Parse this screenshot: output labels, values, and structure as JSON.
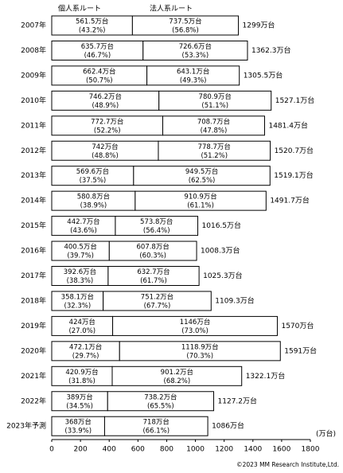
{
  "chart_data": {
    "type": "stacked_bar_h",
    "categories": [
      "2007年",
      "2008年",
      "2009年",
      "2010年",
      "2011年",
      "2012年",
      "2013年",
      "2014年",
      "2015年",
      "2016年",
      "2017年",
      "2018年",
      "2019年",
      "2020年",
      "2021年",
      "2022年",
      "2023年予測"
    ],
    "series": [
      {
        "name": "個人系ルート",
        "color": "#ffffff",
        "values": [
          561.5,
          635.7,
          662.4,
          746.2,
          772.7,
          742,
          569.6,
          580.8,
          442.7,
          400.5,
          392.6,
          358.1,
          424,
          472.1,
          420.9,
          389,
          368
        ],
        "value_labels": [
          "561.5万台",
          "635.7万台",
          "662.4万台",
          "746.2万台",
          "772.7万台",
          "742万台",
          "569.6万台",
          "580.8万台",
          "442.7万台",
          "400.5万台",
          "392.6万台",
          "358.1万台",
          "424万台",
          "472.1万台",
          "420.9万台",
          "389万台",
          "368万台"
        ],
        "shares": [
          43.2,
          46.7,
          50.7,
          48.9,
          52.2,
          48.8,
          37.5,
          38.9,
          43.6,
          39.7,
          38.3,
          32.3,
          27,
          29.7,
          31.8,
          34.5,
          33.9
        ],
        "share_labels": [
          "(43.2%)",
          "(46.7%)",
          "(50.7%)",
          "(48.9%)",
          "(52.2%)",
          "(48.8%)",
          "(37.5%)",
          "(38.9%)",
          "(43.6%)",
          "(39.7%)",
          "(38.3%)",
          "(32.3%)",
          "(27.0%)",
          "(29.7%)",
          "(31.8%)",
          "(34.5%)",
          "(33.9%)"
        ]
      },
      {
        "name": "法人系ルート",
        "color": "#ffffff",
        "values": [
          737.5,
          726.6,
          643.1,
          780.9,
          708.7,
          778.7,
          949.5,
          910.9,
          573.8,
          607.8,
          632.7,
          751.2,
          1146,
          1118.9,
          901.2,
          738.2,
          718
        ],
        "value_labels": [
          "737.5万台",
          "726.6万台",
          "643.1万台",
          "780.9万台",
          "708.7万台",
          "778.7万台",
          "949.5万台",
          "910.9万台",
          "573.8万台",
          "607.8万台",
          "632.7万台",
          "751.2万台",
          "1146万台",
          "1118.9万台",
          "901.2万台",
          "738.2万台",
          "718万台"
        ],
        "shares": [
          56.8,
          53.3,
          49.3,
          51.1,
          47.8,
          51.2,
          62.5,
          61.1,
          56.4,
          60.3,
          61.7,
          67.7,
          73,
          70.3,
          68.2,
          65.5,
          66.1
        ],
        "share_labels": [
          "(56.8%)",
          "(53.3%)",
          "(49.3%)",
          "(51.1%)",
          "(47.8%)",
          "(51.2%)",
          "(62.5%)",
          "(61.1%)",
          "(56.4%)",
          "(60.3%)",
          "(61.7%)",
          "(67.7%)",
          "(73.0%)",
          "(70.3%)",
          "(68.2%)",
          "(65.5%)",
          "(66.1%)"
        ]
      }
    ],
    "totals": [
      1299,
      1362.3,
      1305.5,
      1527.1,
      1481.4,
      1520.7,
      1519.1,
      1491.7,
      1016.5,
      1008.3,
      1025.3,
      1109.3,
      1570,
      1591,
      1322.1,
      1127.2,
      1086
    ],
    "total_labels": [
      "1299万台",
      "1362.3万台",
      "1305.5万台",
      "1527.1万台",
      "1481.4万台",
      "1520.7万台",
      "1519.1万台",
      "1491.7万台",
      "1016.5万台",
      "1008.3万台",
      "1025.3万台",
      "1109.3万台",
      "1570万台",
      "1591万台",
      "1322.1万台",
      "1127.2万台",
      "1086万台"
    ],
    "xlim": [
      0,
      1800
    ],
    "xticks": [
      0,
      200,
      400,
      600,
      800,
      1000,
      1200,
      1400,
      1600,
      1800
    ],
    "x_unit": "(万台)",
    "source": "©2023 MM Research Institute,Ltd."
  }
}
